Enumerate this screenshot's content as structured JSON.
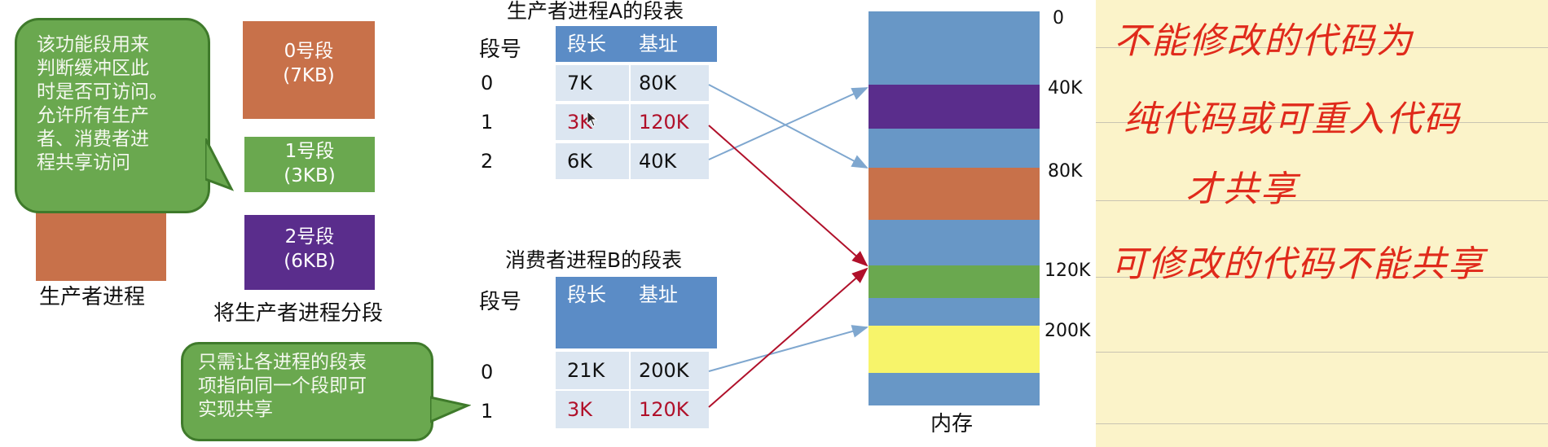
{
  "producer_process": {
    "bubble_text": [
      "该功能段用来",
      "判断缓冲区此",
      "时是否可访问。",
      "允许所有生产",
      "者、消费者进",
      "程共享访问"
    ],
    "label": "生产者进程",
    "block_color": "#c8714a"
  },
  "segments": {
    "caption": "将生产者进程分段",
    "items": [
      {
        "name": "0号段",
        "size": "(7KB)",
        "color": "#c8714a"
      },
      {
        "name": "1号段",
        "size": "(3KB)",
        "color": "#6aa84f"
      },
      {
        "name": "2号段",
        "size": "(6KB)",
        "color": "#5a2d8c"
      }
    ]
  },
  "table_a": {
    "title": "生产者进程A的段表",
    "col_segno": "段号",
    "col_len": "段长",
    "col_base": "基址",
    "rows": [
      {
        "seg": "0",
        "len": "7K",
        "base": "80K"
      },
      {
        "seg": "1",
        "len": "3K",
        "base": "120K"
      },
      {
        "seg": "2",
        "len": "6K",
        "base": "40K"
      }
    ]
  },
  "table_b": {
    "title": "消费者进程B的段表",
    "col_segno": "段号",
    "col_len": "段长",
    "col_base": "基址",
    "rows": [
      {
        "seg": "0",
        "len": "21K",
        "base": "200K"
      },
      {
        "seg": "1",
        "len": "3K",
        "base": "120K"
      }
    ]
  },
  "share_bubble": [
    "只需让各进程的段表",
    "项指向同一个段即可",
    "实现共享"
  ],
  "memory": {
    "label": "内存",
    "addresses": [
      "0",
      "40K",
      "80K",
      "120K",
      "200K"
    ],
    "colors": {
      "blue": "#6897c6",
      "purple": "#5a2d8c",
      "orange": "#c8714a",
      "green": "#6aa84f",
      "yellow": "#f7f46a"
    }
  },
  "handwritten_notes": [
    "不能修改的代码为",
    "纯代码或可重入代码",
    "才共享",
    "可修改的代码不能共享"
  ]
}
